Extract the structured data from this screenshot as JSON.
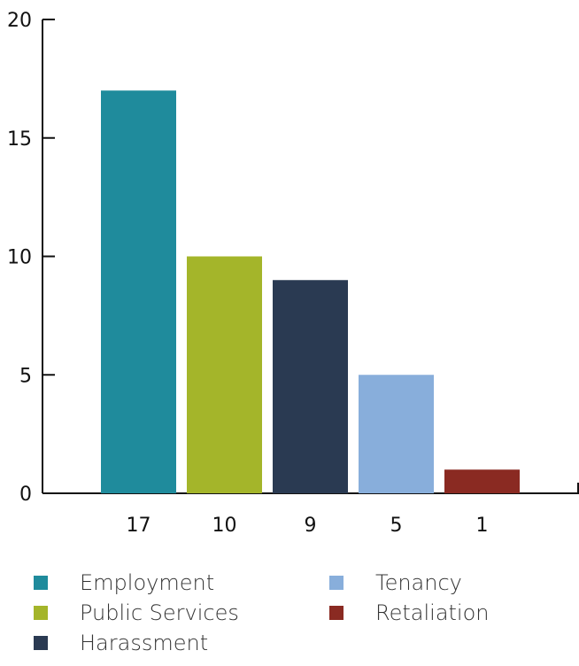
{
  "chart_data": {
    "type": "bar",
    "categories": [
      "Employment",
      "Public Services",
      "Harassment",
      "Tenancy",
      "Retaliation"
    ],
    "values": [
      17,
      10,
      9,
      5,
      1
    ],
    "value_labels": [
      "17",
      "10",
      "9",
      "5",
      "1"
    ],
    "colors": [
      "#1f8b9c",
      "#a4b52a",
      "#2a3a52",
      "#88aedb",
      "#8a2a22"
    ],
    "ylim": [
      0,
      20
    ],
    "yticks": [
      0,
      5,
      10,
      15,
      20
    ],
    "ytick_labels": [
      "0",
      "5",
      "10",
      "15",
      "20"
    ],
    "grid": false,
    "legend_position": "bottom"
  },
  "legend": {
    "items": [
      {
        "label": "Employment",
        "color": "#1f8b9c"
      },
      {
        "label": "Public Services",
        "color": "#a4b52a"
      },
      {
        "label": "Harassment",
        "color": "#2a3a52"
      },
      {
        "label": "Tenancy",
        "color": "#88aedb"
      },
      {
        "label": "Retaliation",
        "color": "#8a2a22"
      }
    ]
  }
}
